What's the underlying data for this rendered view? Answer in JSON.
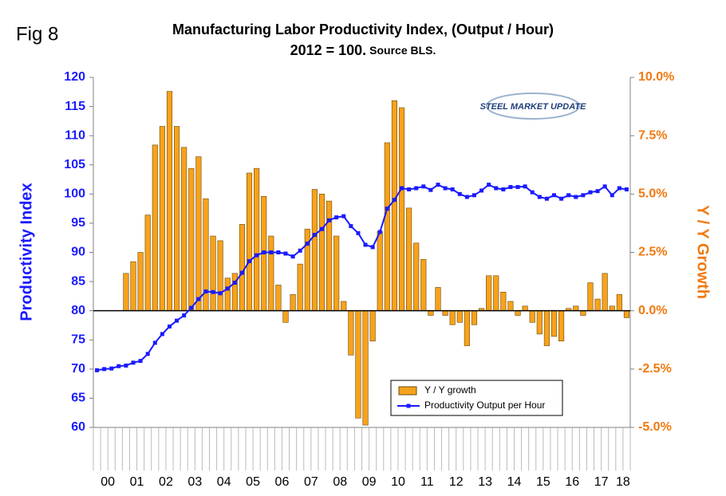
{
  "chart_data": {
    "type": "combo",
    "figure_label": "Fig 8",
    "title": "Manufacturing Labor Productivity Index, (Output / Hour)",
    "subtitle": "2012 = 100.",
    "source": "Source BLS.",
    "logo": "STEEL MARKET UPDATE",
    "y_label": "Productivity Index",
    "y2_label": "Y / Y Growth",
    "categories": [
      "00",
      null,
      null,
      null,
      "01",
      null,
      null,
      null,
      "02",
      null,
      null,
      null,
      "03",
      null,
      null,
      null,
      "04",
      null,
      null,
      null,
      "05",
      null,
      null,
      null,
      "06",
      null,
      null,
      null,
      "07",
      null,
      null,
      null,
      "08",
      null,
      null,
      null,
      "09",
      null,
      null,
      null,
      "10",
      null,
      null,
      null,
      "11",
      null,
      null,
      null,
      "12",
      null,
      null,
      null,
      "13",
      null,
      null,
      null,
      "14",
      null,
      null,
      null,
      "15",
      null,
      null,
      null,
      "16",
      null,
      null,
      null,
      "17",
      null,
      null,
      null,
      "18",
      null
    ],
    "ylim": [
      60,
      120
    ],
    "yticks": [
      60,
      65,
      70,
      75,
      80,
      85,
      90,
      95,
      100,
      105,
      110,
      115,
      120
    ],
    "y2lim": [
      -5,
      10
    ],
    "y2ticks": [
      {
        "value": -5,
        "label": "-5.0%"
      },
      {
        "value": -2.5,
        "label": "-2.5%"
      },
      {
        "value": 0,
        "label": "0.0%"
      },
      {
        "value": 2.5,
        "label": "2.5%"
      },
      {
        "value": 5,
        "label": "5.0%"
      },
      {
        "value": 7.5,
        "label": "7.5%"
      },
      {
        "value": 10,
        "label": "10.0%"
      }
    ],
    "series": [
      {
        "name": "Y / Y growth",
        "type": "bar",
        "axis": "y2",
        "color": "#f7a21b",
        "values": [
          null,
          null,
          null,
          null,
          1.6,
          2.1,
          2.5,
          4.1,
          7.1,
          7.9,
          9.4,
          7.9,
          7.0,
          6.1,
          6.6,
          4.8,
          3.2,
          3.0,
          1.4,
          1.6,
          3.7,
          5.9,
          6.1,
          4.9,
          3.2,
          1.1,
          -0.5,
          0.7,
          2.0,
          3.5,
          5.2,
          5.0,
          4.7,
          3.2,
          0.4,
          -1.9,
          -4.6,
          -4.9,
          -1.3,
          3.4,
          7.2,
          9.0,
          8.7,
          4.4,
          2.9,
          2.2,
          -0.2,
          1.0,
          -0.2,
          -0.6,
          -0.5,
          -1.5,
          -0.6,
          0.1,
          1.5,
          1.5,
          0.8,
          0.4,
          -0.2,
          0.2,
          -0.5,
          -1.0,
          -1.5,
          -1.1,
          -1.3,
          0.1,
          0.2,
          -0.2,
          1.2,
          0.5,
          1.6,
          0.2,
          0.7,
          -0.3
        ]
      },
      {
        "name": "Productivity Output per Hour",
        "type": "line",
        "color": "#1a1aff",
        "values": [
          69.8,
          70,
          70.1,
          70.5,
          70.6,
          71.1,
          71.4,
          72.6,
          74.5,
          76,
          77.3,
          78.3,
          79.2,
          80.5,
          82,
          83.3,
          83.2,
          83,
          83.8,
          84.8,
          86.5,
          88.5,
          89.5,
          90,
          90,
          90,
          89.8,
          89.3,
          90.3,
          91.5,
          93,
          94,
          95.5,
          96,
          96.2,
          94.5,
          93.3,
          91.3,
          90.9,
          93.5,
          97.5,
          99,
          101,
          100.8,
          101,
          101.3,
          100.7,
          101.6,
          101,
          100.8,
          100,
          99.5,
          99.8,
          100.6,
          101.6,
          101,
          100.8,
          101.2,
          101.2,
          101.3,
          100.3,
          99.5,
          99.2,
          99.8,
          99.2,
          99.8,
          99.5,
          99.8,
          100.3,
          100.5,
          101.3,
          99.8,
          101,
          100.8
        ]
      }
    ]
  }
}
